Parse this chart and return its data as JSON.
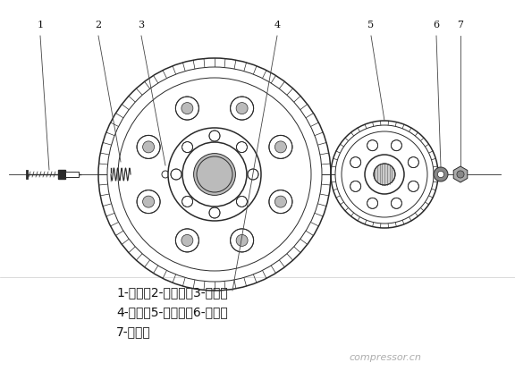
{
  "bg_color": "#ffffff",
  "line_color": "#2a2a2a",
  "label_line_color": "#444444",
  "text_color": "#111111",
  "caption_lines": [
    "1-柱销；2-弹簧垫；3-挡圈；",
    "4-飞轮；5-联轴器；6-垫圈；",
    "7-螺母；"
  ],
  "watermark": "compressor.cn",
  "label_numbers": [
    "1",
    "2",
    "3",
    "4",
    "5",
    "6",
    "7"
  ],
  "caption_fontsize": 10,
  "watermark_fontsize": 8
}
